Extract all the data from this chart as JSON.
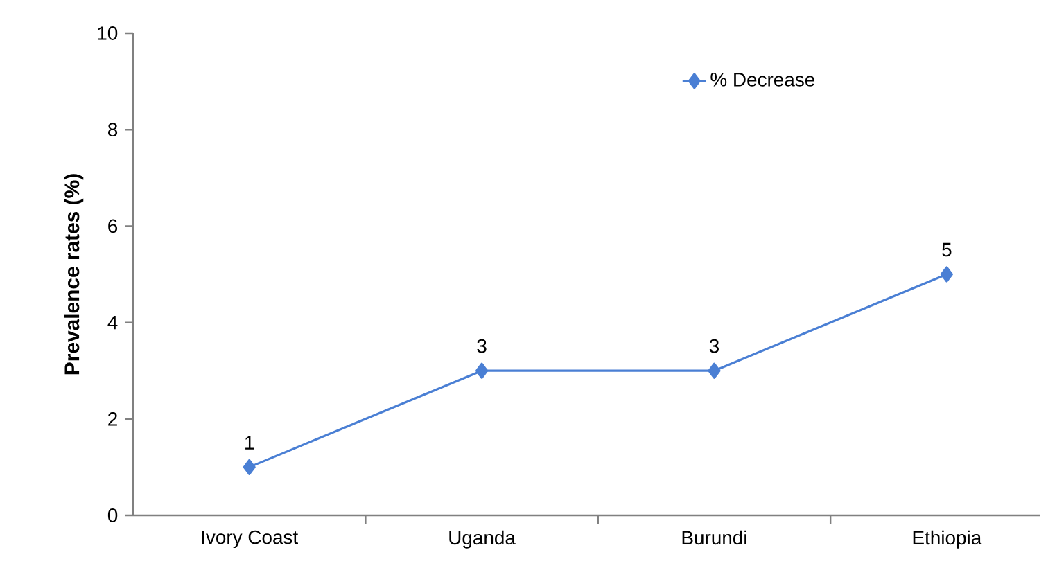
{
  "chart_data": {
    "type": "line",
    "ylabel": "Prevalence rates (%)",
    "categories": [
      "Ivory Coast",
      "Uganda",
      "Burundi",
      "Ethiopia"
    ],
    "series": [
      {
        "name": "% Decrease",
        "color": "#4a7fd4",
        "values": [
          1,
          3,
          3,
          5
        ]
      }
    ],
    "ylim": [
      0,
      10
    ],
    "yticks": [
      0,
      2,
      4,
      6,
      8,
      10
    ],
    "marker": "diamond",
    "data_labels": true,
    "legend": "top right",
    "grid": false
  }
}
